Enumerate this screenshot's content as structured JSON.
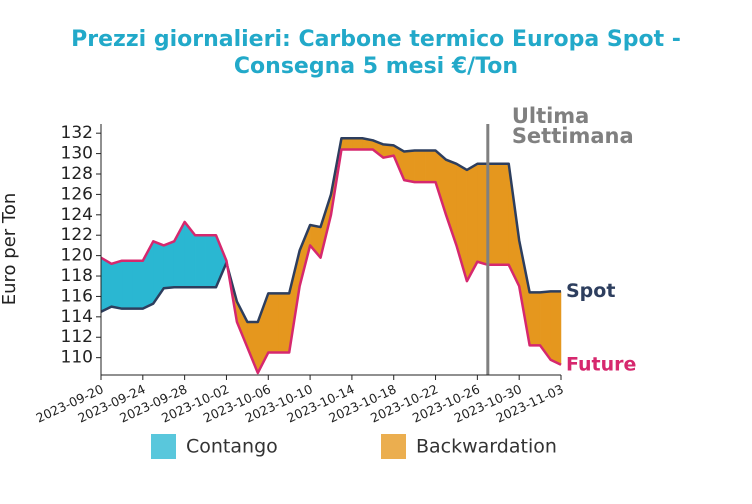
{
  "chart_data": {
    "type": "line",
    "title": [
      "Prezzi giornalieri: Carbone termico Europa Spot -",
      "Consegna 5 mesi €/Ton"
    ],
    "ylabel": "Euro per Ton",
    "x": [
      "2023-09-20",
      "2023-09-21",
      "2023-09-22",
      "2023-09-23",
      "2023-09-24",
      "2023-09-25",
      "2023-09-26",
      "2023-09-27",
      "2023-09-28",
      "2023-09-29",
      "2023-09-30",
      "2023-10-01",
      "2023-10-02",
      "2023-10-03",
      "2023-10-04",
      "2023-10-05",
      "2023-10-06",
      "2023-10-07",
      "2023-10-08",
      "2023-10-09",
      "2023-10-10",
      "2023-10-11",
      "2023-10-12",
      "2023-10-13",
      "2023-10-14",
      "2023-10-15",
      "2023-10-16",
      "2023-10-17",
      "2023-10-18",
      "2023-10-19",
      "2023-10-20",
      "2023-10-21",
      "2023-10-22",
      "2023-10-23",
      "2023-10-24",
      "2023-10-25",
      "2023-10-26",
      "2023-10-27",
      "2023-10-28",
      "2023-10-29",
      "2023-10-30",
      "2023-10-31",
      "2023-11-01",
      "2023-11-02",
      "2023-11-03"
    ],
    "series": [
      {
        "name": "Spot",
        "color": "#2d3e5e",
        "values": [
          114.5,
          115,
          114.8,
          114.8,
          114.8,
          115.3,
          116.8,
          116.9,
          116.9,
          116.9,
          116.9,
          116.9,
          119.3,
          115.5,
          113.5,
          113.5,
          116.3,
          116.3,
          116.3,
          120.5,
          123,
          122.8,
          126,
          131.5,
          131.5,
          131.5,
          131.3,
          130.9,
          130.8,
          130.2,
          130.3,
          130.3,
          130.3,
          129.4,
          129,
          128.4,
          129,
          129,
          129,
          129,
          121.5,
          116.4,
          116.4,
          116.5,
          116.5
        ]
      },
      {
        "name": "Future",
        "color": "#d6286e",
        "values": [
          119.8,
          119.2,
          119.5,
          119.5,
          119.5,
          121.4,
          121,
          121.4,
          123.3,
          122,
          122,
          122,
          119.5,
          113.5,
          111,
          108.5,
          110.5,
          110.5,
          110.5,
          117,
          121,
          119.8,
          124,
          130.4,
          130.4,
          130.4,
          130.4,
          129.6,
          129.8,
          127.4,
          127.2,
          127.2,
          127.2,
          124,
          121,
          117.5,
          119.4,
          119.1,
          119.1,
          119.1,
          117,
          111.2,
          111.2,
          109.8,
          109.3
        ]
      }
    ],
    "legend": [
      {
        "name": "Contango",
        "color": "#2ab7d2"
      },
      {
        "name": "Backwardation",
        "color": "#e5971e"
      }
    ],
    "annotation": {
      "text": [
        "Ultima",
        "Settimana"
      ],
      "x": "2023-10-27",
      "color": "#808080"
    },
    "xlim": [
      "2023-09-20",
      "2023-11-03"
    ],
    "xticks": [
      "2023-09-20",
      "2023-09-24",
      "2023-09-28",
      "2023-10-02",
      "2023-10-06",
      "2023-10-10",
      "2023-10-14",
      "2023-10-18",
      "2023-10-22",
      "2023-10-26",
      "2023-10-30",
      "2023-11-03"
    ],
    "ylim": [
      108.3,
      132.9
    ],
    "yticks": [
      110,
      112,
      114,
      116,
      118,
      120,
      122,
      124,
      126,
      128,
      130,
      132
    ]
  }
}
